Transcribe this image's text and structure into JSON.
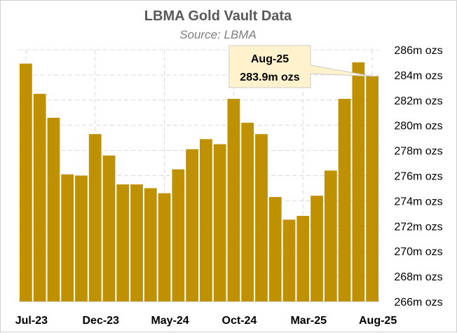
{
  "chart_data": {
    "type": "bar",
    "title": "LBMA Gold Vault Data",
    "subtitle": "Source: LBMA",
    "xlabel": "",
    "ylabel": "",
    "ylim": [
      266,
      286
    ],
    "y_tick_step": 2,
    "y_tick_suffix": "m ozs",
    "y_axis_side": "right",
    "grid": true,
    "grid_style": "dashed vertical and horizontal",
    "categories": [
      "Jul-23",
      "Aug-23",
      "Sep-23",
      "Oct-23",
      "Nov-23",
      "Dec-23",
      "Jan-24",
      "Feb-24",
      "Mar-24",
      "Apr-24",
      "May-24",
      "Jun-24",
      "Jul-24",
      "Aug-24",
      "Sep-24",
      "Oct-24",
      "Nov-24",
      "Dec-24",
      "Jan-25",
      "Feb-25",
      "Mar-25",
      "Apr-25",
      "May-25",
      "Jun-25",
      "Jul-25",
      "Aug-25"
    ],
    "x_tick_labels": [
      "Jul-23",
      "Dec-23",
      "May-24",
      "Oct-24",
      "Mar-25",
      "Aug-25"
    ],
    "x_tick_every": 5,
    "values": [
      284.9,
      282.5,
      280.6,
      276.1,
      276.0,
      279.3,
      277.6,
      275.3,
      275.3,
      275.0,
      274.6,
      276.5,
      278.1,
      278.9,
      278.5,
      282.1,
      280.2,
      279.3,
      274.3,
      272.5,
      272.8,
      274.4,
      276.4,
      282.1,
      285.0,
      283.9
    ],
    "bar_color": "#bf9000",
    "callout": {
      "line1": "Aug-25",
      "line2": "283.9m ozs",
      "fill": "#fff2cc",
      "border": "#c9c9c9"
    }
  }
}
